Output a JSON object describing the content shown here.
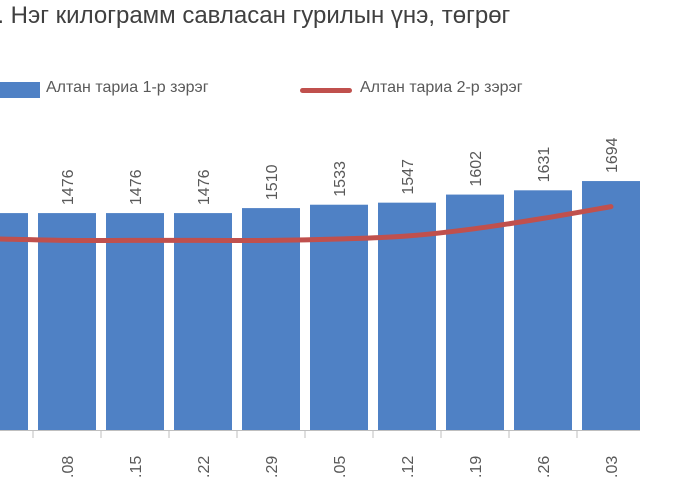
{
  "chart_data": {
    "type": "bar",
    "title": "4. Нэг килограмм савласан гурилын үнэ, төгрөг",
    "xlabel": "",
    "ylabel": "",
    "categories": [
      "",
      ".08",
      ".15",
      ".22",
      ".29",
      ".05",
      ".12",
      ".19",
      ".26",
      ".03"
    ],
    "ylim": [
      0,
      2300
    ],
    "grid": false,
    "legend": "top",
    "series": [
      {
        "name": "Алтан тариа 1-р зэрэг",
        "type": "bar",
        "color": "#4f81c5",
        "values": [
          1476,
          1476,
          1476,
          1476,
          1510,
          1533,
          1547,
          1602,
          1631,
          1694
        ],
        "data_labels": [
          "",
          "1476",
          "1476",
          "1476",
          "1510",
          "1533",
          "1547",
          "1602",
          "1631",
          "1694"
        ]
      },
      {
        "name": "Алтан тариа 2-р зэрэг",
        "type": "line",
        "color": "#c0504d",
        "values": [
          1300,
          1290,
          1290,
          1290,
          1290,
          1300,
          1320,
          1370,
          1440,
          1520
        ]
      }
    ]
  }
}
